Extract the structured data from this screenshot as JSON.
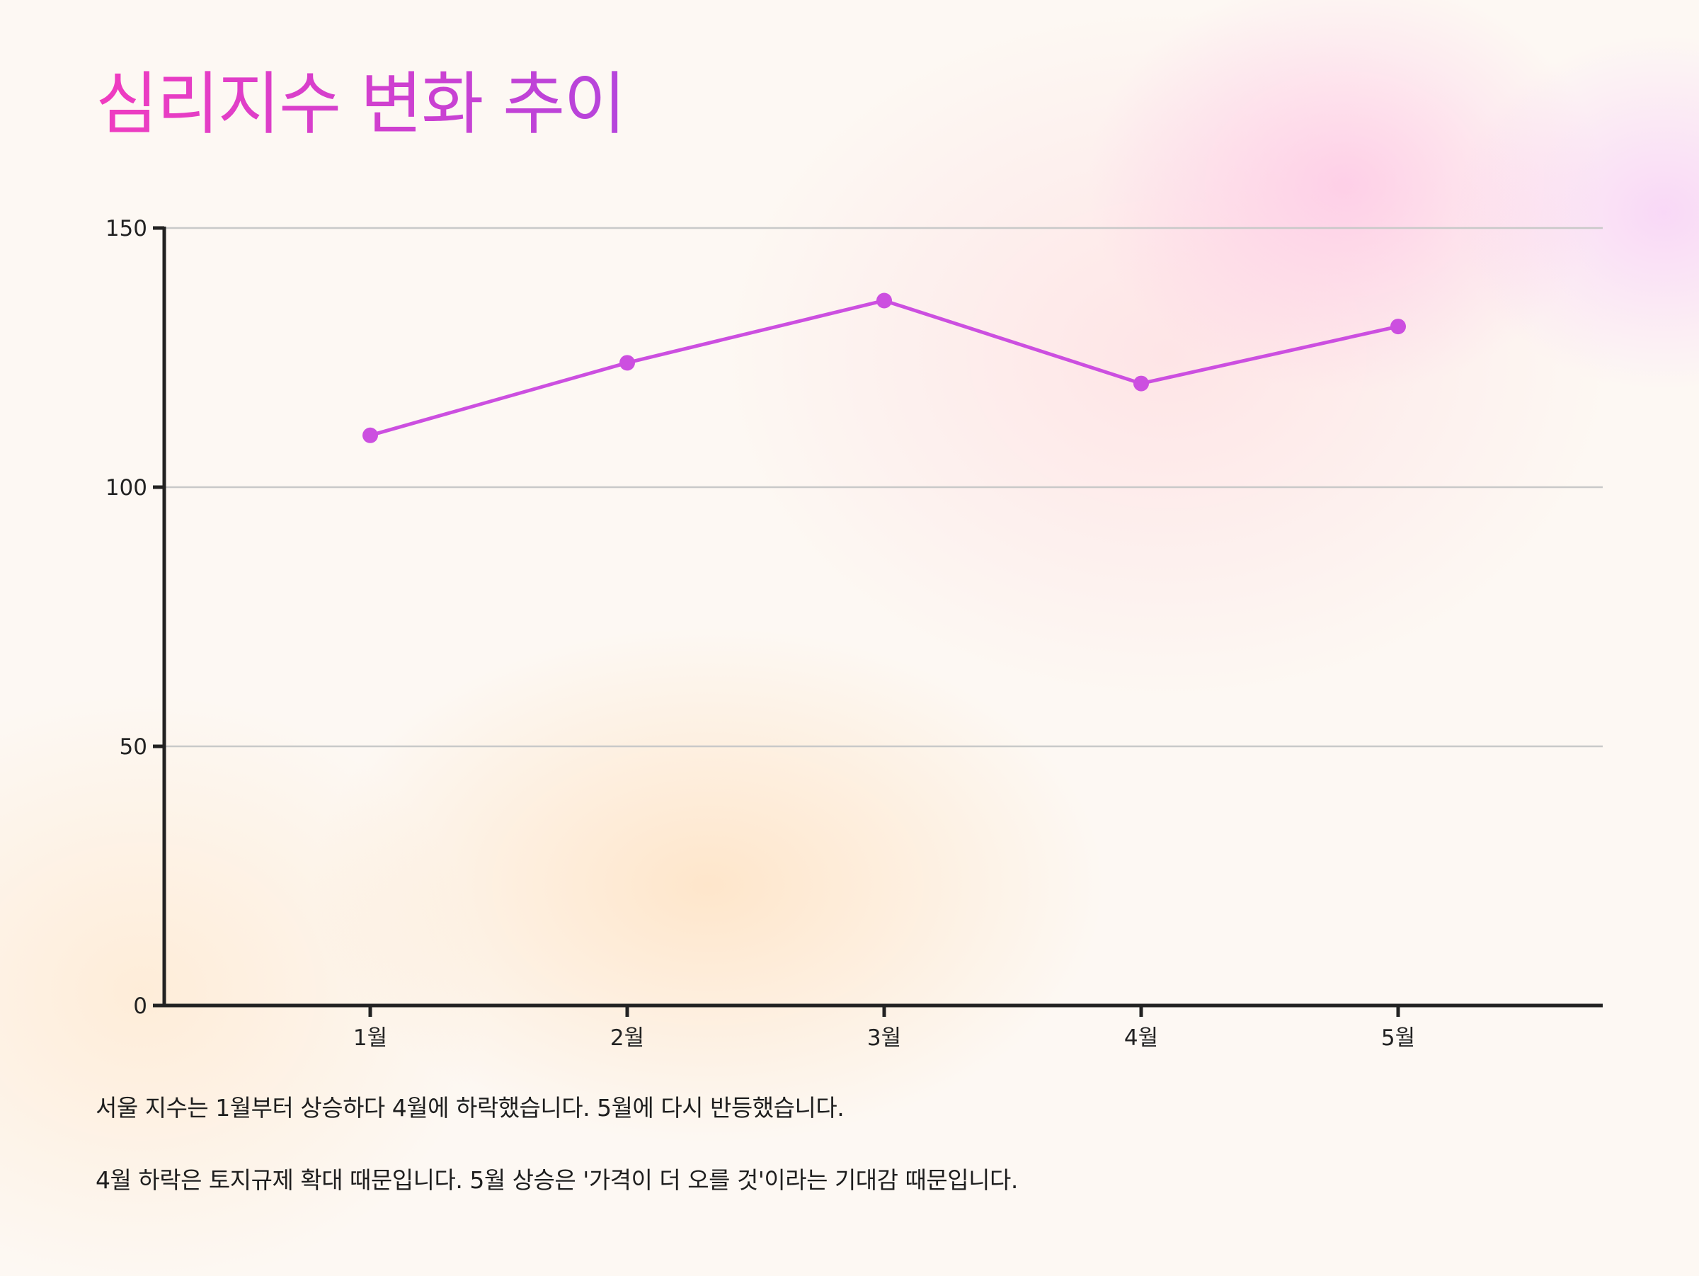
{
  "title": "심리지수 변화 추이",
  "colors": {
    "series": "#cc4fe0",
    "title_start": "#f03cc0",
    "title_end": "#b544dc",
    "axis": "#222222",
    "grid": "#c9c9c9"
  },
  "chart_data": {
    "type": "line",
    "title": "심리지수 변화 추이",
    "xlabel": "",
    "ylabel": "",
    "categories": [
      "1월",
      "2월",
      "3월",
      "4월",
      "5월"
    ],
    "series": [
      {
        "values": [
          110,
          124,
          136,
          120,
          131
        ]
      }
    ],
    "ylim": [
      0,
      150
    ],
    "yticks": [
      0,
      50,
      100,
      150
    ],
    "grid": true,
    "legend": "none",
    "markers": true
  },
  "captions": [
    "서울 지수는 1월부터 상승하다 4월에 하락했습니다. 5월에 다시 반등했습니다.",
    "4월 하락은 토지규제 확대 때문입니다. 5월 상승은 '가격이 더 오를 것'이라는 기대감 때문입니다."
  ]
}
